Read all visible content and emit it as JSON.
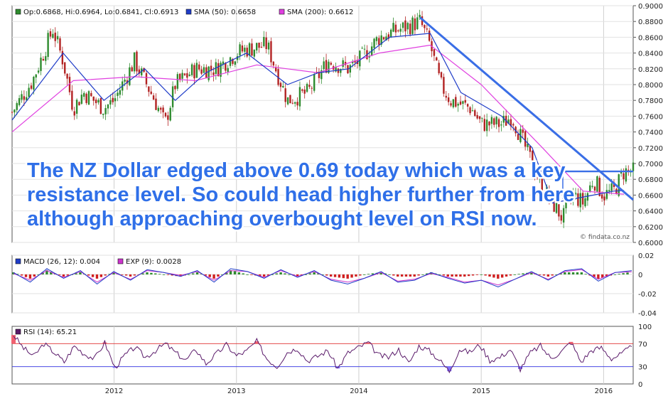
{
  "chart_data": [
    {
      "type": "candlestick",
      "legend": {
        "ohlc": "Op:0.6868, Hi:0.6964, Lo:0.6841, Cl:0.6913",
        "sma50": "SMA (50): 0.6658",
        "sma200": "SMA (200): 0.6612"
      },
      "colors": {
        "up": "#2e8b2e",
        "down": "#b22222",
        "sma50": "#1f3cc8",
        "sma200": "#e040e0",
        "trend": "#3a6ee6",
        "grid": "#d8d8d8"
      },
      "ylim": [
        0.6,
        0.9
      ],
      "y_ticks": [
        "0.9000",
        "0.8800",
        "0.8600",
        "0.8400",
        "0.8200",
        "0.8000",
        "0.7800",
        "0.7600",
        "0.7400",
        "0.7200",
        "0.7000",
        "0.6800",
        "0.6600",
        "0.6400",
        "0.6200",
        "0.6000"
      ],
      "series": [
        {
          "name": "Close",
          "x": [
            "2011-03",
            "2011-05",
            "2011-07",
            "2011-08",
            "2011-09",
            "2011-10",
            "2011-12",
            "2012-01",
            "2012-03",
            "2012-05",
            "2012-06",
            "2012-07",
            "2012-09",
            "2012-11",
            "2013-01",
            "2013-02",
            "2013-04",
            "2013-06",
            "2013-08",
            "2013-10",
            "2013-12",
            "2014-01",
            "2014-03",
            "2014-05",
            "2014-07",
            "2014-08",
            "2014-09",
            "2014-10",
            "2014-12",
            "2015-01",
            "2015-03",
            "2015-04",
            "2015-06",
            "2015-07",
            "2015-08",
            "2015-09",
            "2015-10",
            "2015-11",
            "2015-12",
            "2016-01",
            "2016-02",
            "2016-03"
          ],
          "values": [
            0.765,
            0.805,
            0.87,
            0.83,
            0.77,
            0.79,
            0.77,
            0.78,
            0.83,
            0.78,
            0.75,
            0.8,
            0.82,
            0.82,
            0.84,
            0.845,
            0.85,
            0.78,
            0.79,
            0.83,
            0.82,
            0.83,
            0.86,
            0.87,
            0.88,
            0.85,
            0.8,
            0.78,
            0.77,
            0.75,
            0.75,
            0.76,
            0.7,
            0.67,
            0.65,
            0.63,
            0.66,
            0.65,
            0.68,
            0.66,
            0.665,
            0.69
          ]
        },
        {
          "name": "SMA (50)",
          "x": [
            "2011-03",
            "2011-08",
            "2011-12",
            "2012-04",
            "2012-07",
            "2012-10",
            "2013-02",
            "2013-06",
            "2013-09",
            "2013-12",
            "2014-04",
            "2014-08",
            "2014-11",
            "2015-03",
            "2015-06",
            "2015-08",
            "2015-10",
            "2015-12",
            "2016-02",
            "2016-03"
          ],
          "values": [
            0.755,
            0.84,
            0.78,
            0.82,
            0.78,
            0.815,
            0.84,
            0.8,
            0.815,
            0.82,
            0.86,
            0.865,
            0.79,
            0.76,
            0.72,
            0.65,
            0.655,
            0.66,
            0.665,
            0.6658
          ]
        },
        {
          "name": "SMA (200)",
          "x": [
            "2011-03",
            "2011-09",
            "2012-03",
            "2012-09",
            "2013-03",
            "2013-09",
            "2014-03",
            "2014-08",
            "2015-01",
            "2015-07",
            "2015-11",
            "2016-03"
          ],
          "values": [
            0.74,
            0.805,
            0.81,
            0.805,
            0.825,
            0.815,
            0.84,
            0.85,
            0.8,
            0.72,
            0.665,
            0.6612
          ]
        }
      ],
      "annotations": {
        "text_lines": [
          "The NZ Dollar edged above 0.69 today which was a key",
          "resistance level. So could head higher further from here",
          "although approaching overbought level on RSI now."
        ],
        "credit": "© findata.co.nz",
        "trendline": {
          "from": [
            "2014-07",
            0.885
          ],
          "to": [
            "2016-03",
            0.654
          ]
        },
        "resistance": {
          "from": [
            "2015-09",
            0.69
          ],
          "to": [
            "2016-03",
            0.69
          ]
        }
      }
    },
    {
      "type": "line",
      "legend": {
        "macd": "MACD (26, 12): 0.004",
        "exp": "EXP (9): 0.0028"
      },
      "colors": {
        "macd": "#1f3cc8",
        "exp": "#cc33cc",
        "hist_up": "#2e8b2e",
        "hist_down": "#d02020"
      },
      "ylim": [
        -0.04,
        0.02
      ],
      "y_ticks": [
        "0.02",
        "0",
        "-0.02",
        "-0.04"
      ],
      "series": [
        {
          "name": "MACD (26, 12)",
          "values": [
            0.002,
            -0.008,
            0.006,
            -0.004,
            0.004,
            -0.01,
            0.003,
            -0.006,
            0.005,
            0.002,
            -0.002,
            0.004,
            -0.008,
            0.006,
            0.003,
            -0.004,
            0.005,
            -0.003,
            0.004,
            -0.006,
            -0.01,
            -0.004,
            0.003,
            -0.008,
            -0.006,
            0.002,
            -0.004,
            -0.009,
            -0.006,
            -0.013,
            -0.005,
            0.003,
            -0.006,
            0.004,
            0.006,
            -0.007,
            0.002,
            0.004
          ]
        },
        {
          "name": "EXP (9)",
          "values": [
            0.001,
            -0.006,
            0.004,
            -0.003,
            0.003,
            -0.008,
            0.002,
            -0.005,
            0.004,
            0.002,
            -0.001,
            0.003,
            -0.006,
            0.004,
            0.003,
            -0.003,
            0.004,
            -0.002,
            0.003,
            -0.005,
            -0.008,
            -0.004,
            0.002,
            -0.007,
            -0.005,
            0.001,
            -0.003,
            -0.008,
            -0.006,
            -0.011,
            -0.005,
            0.002,
            -0.005,
            0.003,
            0.005,
            -0.005,
            0.002,
            0.0028
          ]
        }
      ]
    },
    {
      "type": "line",
      "legend": {
        "rsi": "RSI (14): 65.21"
      },
      "colors": {
        "rsi": "#5a1a6a",
        "ob": "#e03030",
        "os": "#3030e0",
        "fill_ob": "#f06070",
        "fill_os": "#8070ff"
      },
      "ylim": [
        0,
        100
      ],
      "y_ticks": [
        "100",
        "70",
        "30",
        "0"
      ],
      "series": [
        {
          "name": "RSI (14)",
          "values": [
            85,
            62,
            48,
            70,
            55,
            38,
            66,
            52,
            44,
            72,
            28,
            50,
            64,
            46,
            58,
            70,
            54,
            41,
            60,
            35,
            52,
            68,
            49,
            57,
            74,
            44,
            30,
            55,
            62,
            40,
            48,
            58,
            27,
            54,
            63,
            72,
            50,
            46,
            60,
            36,
            66,
            58,
            42,
            22,
            60,
            55,
            68,
            41,
            46,
            60,
            26,
            54,
            66,
            45,
            55,
            73,
            38,
            58,
            63,
            44,
            52,
            65
          ]
        }
      ],
      "x_ticks": [
        "2012",
        "2013",
        "2014",
        "2015",
        "2016"
      ]
    }
  ]
}
